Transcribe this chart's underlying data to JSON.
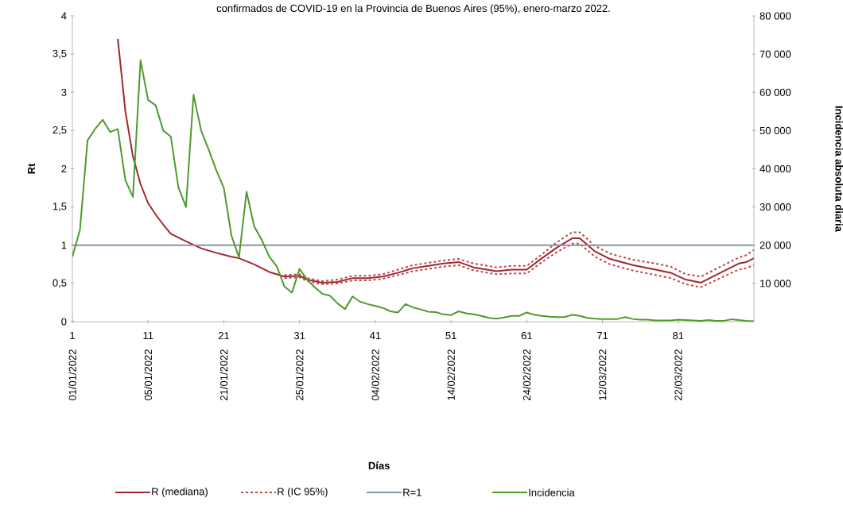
{
  "chart_data": {
    "type": "line",
    "title": "confirmados de COVID-19 en la Provincia de Buenos Aires (95%), enero-marzo 2022.",
    "ylabel": "Rt",
    "y2label": "Incidencia absoluta diaria",
    "xlim": [
      1,
      91
    ],
    "xticks": [
      1,
      11,
      21,
      31,
      41,
      51,
      61,
      71,
      81
    ],
    "annotations": [
      "01/01/2022",
      "05/01/2022",
      "21/01/2022",
      "25/01/2022",
      "04/02/2022",
      "14/02/2022",
      "24/02/2022",
      "12/03/2022",
      "22/03/2022",
      "Días"
    ],
    "ylim": [
      0,
      4
    ],
    "yticks": [
      0,
      {
        "value": 0.5,
        "label": "0,5"
      },
      1,
      {
        "value": 1.5,
        "label": "1,5"
      },
      2,
      {
        "value": 2.5,
        "label": "2,5"
      },
      3,
      {
        "value": 3.5,
        "label": "3,5"
      },
      4
    ],
    "y2lim": [
      0,
      80000
    ],
    "y2ticks": [
      {
        "value": 10000,
        "label": "10 000"
      },
      {
        "value": 20000,
        "label": "20 000"
      },
      {
        "value": 30000,
        "label": "30 000"
      },
      {
        "value": 40000,
        "label": "40 000"
      },
      {
        "value": 50000,
        "label": "50 000"
      },
      {
        "value": 60000,
        "label": "60 000"
      },
      {
        "value": 70000,
        "label": "70 000"
      },
      {
        "value": 80000,
        "label": "80 000"
      }
    ],
    "legend": "bottom",
    "grid": false,
    "marker": "none",
    "series": [
      {
        "name": "R (mediana)",
        "color": "#a0282d",
        "line_style": "solid",
        "x": [
          7,
          8,
          9,
          10,
          11,
          12,
          13,
          14,
          15,
          16,
          18,
          20,
          22,
          23,
          25,
          27,
          29,
          31,
          32,
          34,
          36,
          38,
          40,
          42,
          44,
          46,
          48,
          50,
          52,
          54,
          57,
          59,
          61,
          63,
          65,
          67,
          68,
          70,
          72,
          75,
          78,
          80,
          82,
          84,
          87,
          89,
          90,
          91
        ],
        "values": [
          3.7,
          2.75,
          2.16,
          1.8,
          1.55,
          1.4,
          1.27,
          1.15,
          1.1,
          1.05,
          0.96,
          0.9,
          0.85,
          0.83,
          0.75,
          0.65,
          0.59,
          0.6,
          0.55,
          0.51,
          0.52,
          0.57,
          0.57,
          0.59,
          0.64,
          0.7,
          0.73,
          0.76,
          0.78,
          0.71,
          0.66,
          0.68,
          0.68,
          0.83,
          0.97,
          1.09,
          1.09,
          0.92,
          0.82,
          0.74,
          0.68,
          0.64,
          0.55,
          0.51,
          0.66,
          0.76,
          0.78,
          0.83
        ]
      },
      {
        "name": "R (IC 95%)",
        "color": "#b84a4e",
        "line_style": "dashed",
        "x": [
          29,
          31,
          32,
          34,
          36,
          38,
          40,
          42,
          44,
          46,
          48,
          50,
          52,
          54,
          57,
          59,
          61,
          63,
          65,
          67,
          68,
          70,
          72,
          75,
          78,
          80,
          82,
          84,
          87,
          89,
          90,
          91
        ],
        "values": [
          0.61,
          0.62,
          0.57,
          0.53,
          0.55,
          0.6,
          0.6,
          0.62,
          0.68,
          0.74,
          0.77,
          0.8,
          0.82,
          0.76,
          0.71,
          0.73,
          0.73,
          0.88,
          1.04,
          1.17,
          1.17,
          0.99,
          0.89,
          0.81,
          0.76,
          0.72,
          0.62,
          0.59,
          0.74,
          0.84,
          0.87,
          0.94
        ]
      },
      {
        "color": "#b84a4e",
        "line_style": "dashed",
        "x": [
          29,
          31,
          32,
          34,
          36,
          38,
          40,
          42,
          44,
          46,
          48,
          50,
          52,
          54,
          57,
          59,
          61,
          63,
          65,
          67,
          68,
          70,
          72,
          75,
          78,
          80,
          82,
          84,
          87,
          89,
          90,
          91
        ],
        "values": [
          0.57,
          0.58,
          0.53,
          0.49,
          0.5,
          0.54,
          0.54,
          0.56,
          0.61,
          0.66,
          0.69,
          0.72,
          0.74,
          0.67,
          0.62,
          0.63,
          0.63,
          0.78,
          0.91,
          1.02,
          1.02,
          0.85,
          0.75,
          0.67,
          0.61,
          0.57,
          0.49,
          0.45,
          0.59,
          0.68,
          0.7,
          0.74
        ]
      },
      {
        "name": "R=1",
        "color": "#8494ab",
        "line_style": "solid",
        "x": [
          1,
          91
        ],
        "values": [
          1,
          1
        ]
      },
      {
        "name": "Incidencia",
        "color": "#4f9a2c",
        "line_style": "solid",
        "axis": "y2",
        "x": [
          1,
          2,
          3,
          4,
          5,
          6,
          7,
          8,
          9,
          10,
          11,
          12,
          13,
          14,
          15,
          16,
          17,
          18,
          19,
          20,
          21,
          22,
          23,
          24,
          25,
          26,
          27,
          28,
          29,
          30,
          31,
          32,
          33,
          34,
          35,
          36,
          37,
          38,
          39,
          40,
          41,
          42,
          43,
          44,
          45,
          46,
          47,
          48,
          49,
          50,
          51,
          52,
          53,
          54,
          55,
          56,
          57,
          58,
          59,
          60,
          61,
          62,
          63,
          64,
          65,
          66,
          67,
          68,
          69,
          70,
          71,
          72,
          73,
          74,
          75,
          76,
          77,
          78,
          79,
          80,
          81,
          82,
          83,
          84,
          85,
          86,
          87,
          88,
          89,
          90,
          91
        ],
        "values": [
          17000,
          24000,
          47400,
          50400,
          52800,
          49600,
          50400,
          37000,
          32600,
          68400,
          58000,
          56600,
          50000,
          48400,
          35200,
          30000,
          59400,
          50000,
          45000,
          39600,
          35000,
          22600,
          16800,
          34000,
          25000,
          21400,
          17000,
          14400,
          9200,
          7600,
          13800,
          11000,
          9000,
          7300,
          6800,
          4800,
          3300,
          6600,
          5200,
          4600,
          4100,
          3600,
          2700,
          2400,
          4600,
          3700,
          3200,
          2600,
          2500,
          1900,
          1700,
          2700,
          2200,
          1900,
          1500,
          1000,
          800,
          1100,
          1500,
          1500,
          2400,
          1800,
          1500,
          1300,
          1200,
          1200,
          1800,
          1500,
          1000,
          800,
          700,
          700,
          700,
          1200,
          700,
          500,
          500,
          300,
          300,
          300,
          500,
          400,
          300,
          200,
          400,
          200,
          200,
          600,
          400,
          200,
          100
        ]
      }
    ]
  }
}
